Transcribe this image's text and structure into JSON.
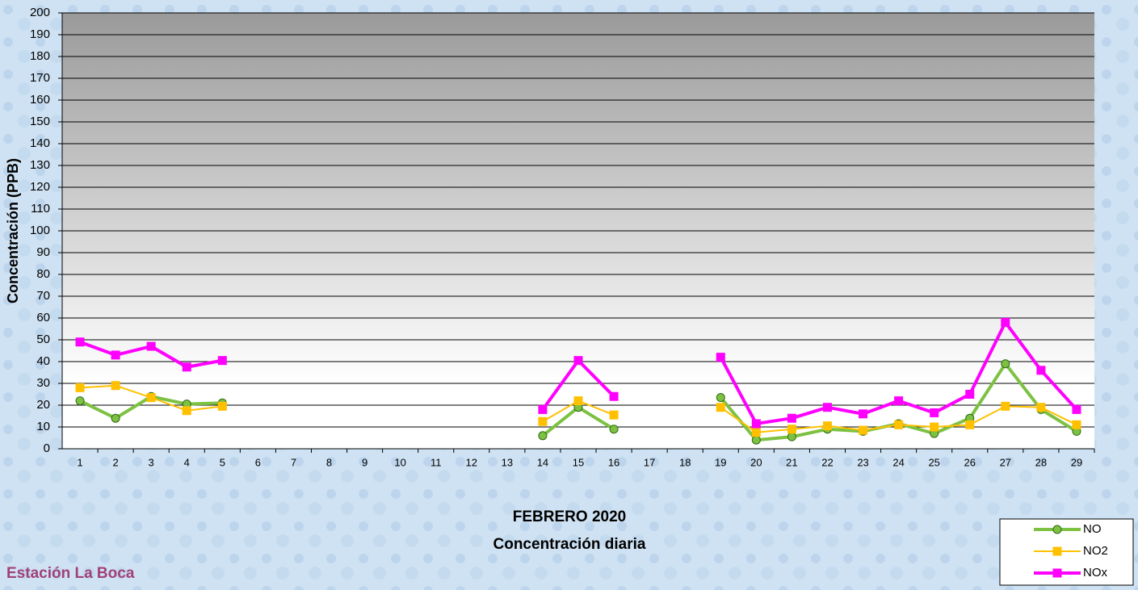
{
  "chart_data": {
    "type": "line",
    "title": "FEBRERO 2020",
    "subtitle": "Concentración diaria",
    "station": "Estación La Boca",
    "y_label": "Concentración  (PPB)",
    "categories": [
      "1",
      "2",
      "3",
      "4",
      "5",
      "6",
      "7",
      "8",
      "9",
      "10",
      "11",
      "12",
      "13",
      "14",
      "15",
      "16",
      "17",
      "18",
      "19",
      "20",
      "21",
      "22",
      "23",
      "24",
      "25",
      "26",
      "27",
      "28",
      "29"
    ],
    "series": [
      {
        "name": "NO",
        "color": "#7dc142",
        "marker": "circle",
        "values": [
          22,
          14,
          24,
          20.5,
          21,
          null,
          null,
          null,
          null,
          null,
          null,
          null,
          null,
          6,
          19,
          9,
          null,
          null,
          23.5,
          4,
          5.5,
          9,
          8,
          11.5,
          7,
          14,
          39,
          18,
          8
        ]
      },
      {
        "name": "NO2",
        "color": "#ffc000",
        "marker": "square",
        "values": [
          28,
          29,
          23.5,
          17.5,
          19.5,
          null,
          null,
          null,
          null,
          null,
          null,
          null,
          null,
          12.5,
          22,
          15.5,
          null,
          null,
          19,
          7.5,
          9,
          10.5,
          8.5,
          11,
          10,
          11,
          19.5,
          19,
          11
        ]
      },
      {
        "name": "NOx",
        "color": "#ff00ff",
        "marker": "square",
        "values": [
          49,
          43,
          47,
          37.5,
          40.5,
          null,
          null,
          null,
          null,
          null,
          null,
          null,
          null,
          18,
          40.5,
          24,
          null,
          null,
          42,
          11.5,
          14,
          19,
          16,
          22,
          16.5,
          25,
          58,
          36,
          18
        ]
      }
    ],
    "ylim": [
      0,
      200
    ],
    "yticks": [
      0,
      10,
      20,
      30,
      40,
      50,
      60,
      70,
      80,
      90,
      100,
      110,
      120,
      130,
      140,
      150,
      160,
      170,
      180,
      190,
      200
    ],
    "grid": true,
    "legend": "bottom-right"
  }
}
